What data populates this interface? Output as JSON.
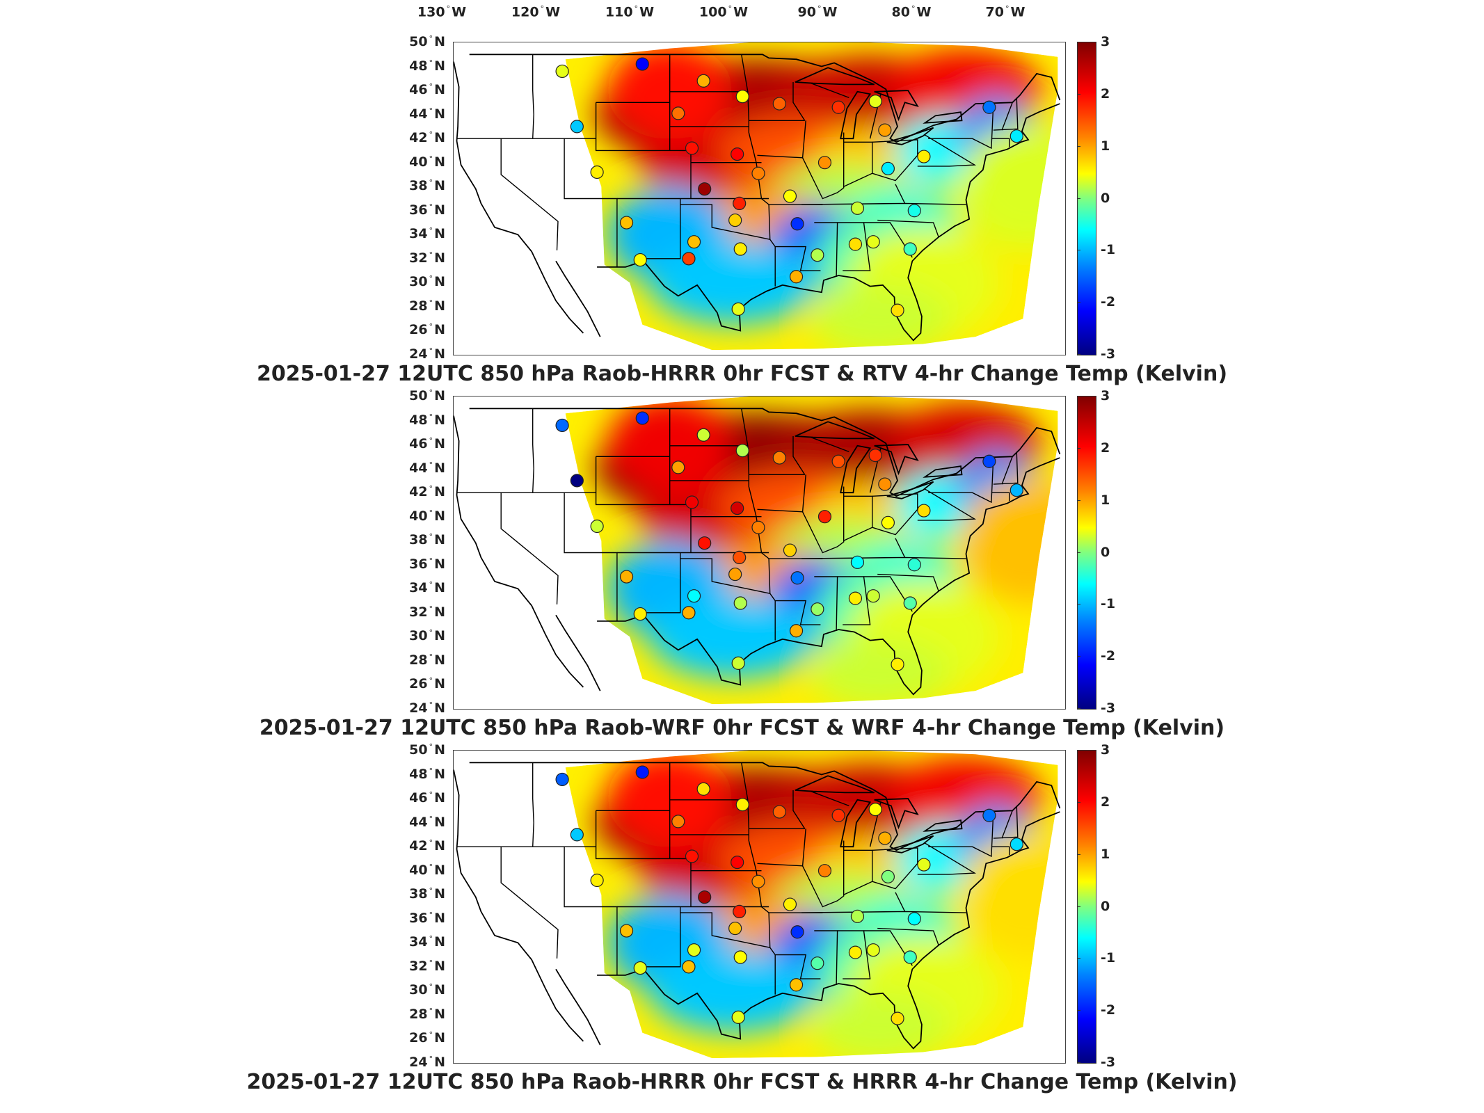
{
  "longitude_labels": [
    {
      "value": "130",
      "hemi": "W"
    },
    {
      "value": "120",
      "hemi": "W"
    },
    {
      "value": "110",
      "hemi": "W"
    },
    {
      "value": "100",
      "hemi": "W"
    },
    {
      "value": "90",
      "hemi": "W"
    },
    {
      "value": "80",
      "hemi": "W"
    },
    {
      "value": "70",
      "hemi": "W"
    }
  ],
  "latitude_labels": [
    {
      "value": "50",
      "hemi": "N"
    },
    {
      "value": "48",
      "hemi": "N"
    },
    {
      "value": "46",
      "hemi": "N"
    },
    {
      "value": "44",
      "hemi": "N"
    },
    {
      "value": "42",
      "hemi": "N"
    },
    {
      "value": "40",
      "hemi": "N"
    },
    {
      "value": "38",
      "hemi": "N"
    },
    {
      "value": "36",
      "hemi": "N"
    },
    {
      "value": "34",
      "hemi": "N"
    },
    {
      "value": "32",
      "hemi": "N"
    },
    {
      "value": "30",
      "hemi": "N"
    },
    {
      "value": "28",
      "hemi": "N"
    },
    {
      "value": "26",
      "hemi": "N"
    },
    {
      "value": "24",
      "hemi": "N"
    }
  ],
  "colorbar": {
    "ticks": [
      "3",
      "2",
      "1",
      "0",
      "-1",
      "-2",
      "-3"
    ],
    "range": [
      -3,
      3
    ],
    "colors": [
      "#800000",
      "#ff0000",
      "#ff8000",
      "#ffff00",
      "#80ff80",
      "#00ffff",
      "#0080ff",
      "#0000ff",
      "#000080"
    ]
  },
  "panels": [
    {
      "title": "2025-01-27 12UTC 850 hPa Raob-HRRR 0hr FCST & RTV 4-hr Change Temp (Kelvin)",
      "stations": [
        {
          "lon": -114.2,
          "lat": 47.6,
          "value": 0.4
        },
        {
          "lon": -106.6,
          "lat": 48.2,
          "value": -2.4
        },
        {
          "lon": -100.8,
          "lat": 46.8,
          "value": 1.0
        },
        {
          "lon": -97.1,
          "lat": 45.5,
          "value": 0.5
        },
        {
          "lon": -103.2,
          "lat": 44.1,
          "value": 1.4
        },
        {
          "lon": -112.8,
          "lat": 43.0,
          "value": -0.9
        },
        {
          "lon": -93.6,
          "lat": 44.9,
          "value": 1.5
        },
        {
          "lon": -88.0,
          "lat": 44.6,
          "value": 1.8
        },
        {
          "lon": -84.5,
          "lat": 45.1,
          "value": 0.4
        },
        {
          "lon": -101.9,
          "lat": 41.2,
          "value": 2.0
        },
        {
          "lon": -97.6,
          "lat": 40.7,
          "value": 2.1
        },
        {
          "lon": -89.3,
          "lat": 40.0,
          "value": 1.2
        },
        {
          "lon": -83.6,
          "lat": 42.7,
          "value": 1.1
        },
        {
          "lon": -83.3,
          "lat": 39.5,
          "value": -0.7
        },
        {
          "lon": -79.9,
          "lat": 40.5,
          "value": 0.6
        },
        {
          "lon": -71.1,
          "lat": 42.2,
          "value": -0.7
        },
        {
          "lon": -73.7,
          "lat": 44.6,
          "value": -1.4
        },
        {
          "lon": -110.9,
          "lat": 39.2,
          "value": 0.6
        },
        {
          "lon": -100.7,
          "lat": 37.8,
          "value": 2.8
        },
        {
          "lon": -95.6,
          "lat": 39.1,
          "value": 1.3
        },
        {
          "lon": -92.6,
          "lat": 37.2,
          "value": 0.5
        },
        {
          "lon": -97.4,
          "lat": 36.6,
          "value": 1.9
        },
        {
          "lon": -97.8,
          "lat": 35.2,
          "value": 0.8
        },
        {
          "lon": -91.9,
          "lat": 34.9,
          "value": -2.0
        },
        {
          "lon": -86.2,
          "lat": 36.2,
          "value": 0.3
        },
        {
          "lon": -80.8,
          "lat": 36.0,
          "value": -0.5
        },
        {
          "lon": -108.1,
          "lat": 35.0,
          "value": 0.9
        },
        {
          "lon": -101.7,
          "lat": 33.4,
          "value": 0.9
        },
        {
          "lon": -97.3,
          "lat": 32.8,
          "value": 0.6
        },
        {
          "lon": -102.2,
          "lat": 32.0,
          "value": 1.7
        },
        {
          "lon": -106.8,
          "lat": 31.9,
          "value": 0.5
        },
        {
          "lon": -90.0,
          "lat": 32.3,
          "value": 0.2
        },
        {
          "lon": -86.4,
          "lat": 33.2,
          "value": 0.7
        },
        {
          "lon": -84.7,
          "lat": 33.4,
          "value": 0.4
        },
        {
          "lon": -81.2,
          "lat": 32.8,
          "value": -0.3
        },
        {
          "lon": -92.0,
          "lat": 30.5,
          "value": 1.0
        },
        {
          "lon": -97.5,
          "lat": 27.8,
          "value": 0.4
        },
        {
          "lon": -82.4,
          "lat": 27.7,
          "value": 0.7
        }
      ]
    },
    {
      "title": "2025-01-27 12UTC 850 hPa Raob-WRF 0hr FCST & WRF 4-hr Change Temp (Kelvin)",
      "stations": [
        {
          "lon": -114.2,
          "lat": 47.6,
          "value": -1.5
        },
        {
          "lon": -106.6,
          "lat": 48.2,
          "value": -2.0
        },
        {
          "lon": -100.8,
          "lat": 46.8,
          "value": 0.3
        },
        {
          "lon": -97.1,
          "lat": 45.5,
          "value": 0.2
        },
        {
          "lon": -103.2,
          "lat": 44.1,
          "value": 1.1
        },
        {
          "lon": -112.8,
          "lat": 43.0,
          "value": -3.0
        },
        {
          "lon": -93.6,
          "lat": 44.9,
          "value": 1.3
        },
        {
          "lon": -88.0,
          "lat": 44.6,
          "value": 1.6
        },
        {
          "lon": -84.5,
          "lat": 45.1,
          "value": 1.8
        },
        {
          "lon": -101.9,
          "lat": 41.2,
          "value": 2.2
        },
        {
          "lon": -97.6,
          "lat": 40.7,
          "value": 2.4
        },
        {
          "lon": -89.3,
          "lat": 40.0,
          "value": 1.9
        },
        {
          "lon": -83.6,
          "lat": 42.7,
          "value": 1.2
        },
        {
          "lon": -83.3,
          "lat": 39.5,
          "value": 0.5
        },
        {
          "lon": -79.9,
          "lat": 40.5,
          "value": 0.7
        },
        {
          "lon": -71.1,
          "lat": 42.2,
          "value": -1.0
        },
        {
          "lon": -73.7,
          "lat": 44.6,
          "value": -1.8
        },
        {
          "lon": -110.9,
          "lat": 39.2,
          "value": 0.3
        },
        {
          "lon": -100.7,
          "lat": 37.8,
          "value": 2.0
        },
        {
          "lon": -95.6,
          "lat": 39.1,
          "value": 1.3
        },
        {
          "lon": -92.6,
          "lat": 37.2,
          "value": 0.8
        },
        {
          "lon": -97.4,
          "lat": 36.6,
          "value": 1.6
        },
        {
          "lon": -97.8,
          "lat": 35.2,
          "value": 1.1
        },
        {
          "lon": -91.9,
          "lat": 34.9,
          "value": -1.4
        },
        {
          "lon": -86.2,
          "lat": 36.2,
          "value": -0.6
        },
        {
          "lon": -80.8,
          "lat": 36.0,
          "value": -0.4
        },
        {
          "lon": -108.1,
          "lat": 35.0,
          "value": 1.0
        },
        {
          "lon": -101.7,
          "lat": 33.4,
          "value": -0.6
        },
        {
          "lon": -97.3,
          "lat": 32.8,
          "value": 0.2
        },
        {
          "lon": -102.2,
          "lat": 32.0,
          "value": 1.0
        },
        {
          "lon": -106.8,
          "lat": 31.9,
          "value": 0.6
        },
        {
          "lon": -90.0,
          "lat": 32.3,
          "value": 0.1
        },
        {
          "lon": -86.4,
          "lat": 33.2,
          "value": 0.6
        },
        {
          "lon": -84.7,
          "lat": 33.4,
          "value": 0.3
        },
        {
          "lon": -81.2,
          "lat": 32.8,
          "value": -0.2
        },
        {
          "lon": -92.0,
          "lat": 30.5,
          "value": 1.0
        },
        {
          "lon": -97.5,
          "lat": 27.8,
          "value": 0.3
        },
        {
          "lon": -82.4,
          "lat": 27.7,
          "value": 0.6
        }
      ]
    },
    {
      "title": "2025-01-27 12UTC 850 hPa Raob-HRRR 0hr FCST & HRRR 4-hr Change Temp (Kelvin)",
      "stations": [
        {
          "lon": -114.2,
          "lat": 47.6,
          "value": -1.6
        },
        {
          "lon": -106.6,
          "lat": 48.2,
          "value": -2.2
        },
        {
          "lon": -100.8,
          "lat": 46.8,
          "value": 0.7
        },
        {
          "lon": -97.1,
          "lat": 45.5,
          "value": 0.6
        },
        {
          "lon": -103.2,
          "lat": 44.1,
          "value": 1.3
        },
        {
          "lon": -112.8,
          "lat": 43.0,
          "value": -0.9
        },
        {
          "lon": -93.6,
          "lat": 44.9,
          "value": 1.5
        },
        {
          "lon": -88.0,
          "lat": 44.6,
          "value": 1.8
        },
        {
          "lon": -84.5,
          "lat": 45.1,
          "value": 0.5
        },
        {
          "lon": -101.9,
          "lat": 41.2,
          "value": 2.0
        },
        {
          "lon": -97.6,
          "lat": 40.7,
          "value": 2.1
        },
        {
          "lon": -89.3,
          "lat": 40.0,
          "value": 1.3
        },
        {
          "lon": -83.6,
          "lat": 42.7,
          "value": 1.0
        },
        {
          "lon": -83.3,
          "lat": 39.5,
          "value": 0.0
        },
        {
          "lon": -79.9,
          "lat": 40.5,
          "value": 0.4
        },
        {
          "lon": -71.1,
          "lat": 42.2,
          "value": -0.8
        },
        {
          "lon": -73.7,
          "lat": 44.6,
          "value": -1.4
        },
        {
          "lon": -110.9,
          "lat": 39.2,
          "value": 0.6
        },
        {
          "lon": -100.7,
          "lat": 37.8,
          "value": 2.7
        },
        {
          "lon": -95.6,
          "lat": 39.1,
          "value": 1.2
        },
        {
          "lon": -92.6,
          "lat": 37.2,
          "value": 0.6
        },
        {
          "lon": -97.4,
          "lat": 36.6,
          "value": 1.9
        },
        {
          "lon": -97.8,
          "lat": 35.2,
          "value": 0.9
        },
        {
          "lon": -91.9,
          "lat": 34.9,
          "value": -2.0
        },
        {
          "lon": -86.2,
          "lat": 36.2,
          "value": 0.2
        },
        {
          "lon": -80.8,
          "lat": 36.0,
          "value": -0.6
        },
        {
          "lon": -108.1,
          "lat": 35.0,
          "value": 0.9
        },
        {
          "lon": -101.7,
          "lat": 33.4,
          "value": 0.4
        },
        {
          "lon": -97.3,
          "lat": 32.8,
          "value": 0.5
        },
        {
          "lon": -102.2,
          "lat": 32.0,
          "value": 0.9
        },
        {
          "lon": -106.8,
          "lat": 31.9,
          "value": 0.4
        },
        {
          "lon": -90.0,
          "lat": 32.3,
          "value": -0.2
        },
        {
          "lon": -86.4,
          "lat": 33.2,
          "value": 0.6
        },
        {
          "lon": -84.7,
          "lat": 33.4,
          "value": 0.4
        },
        {
          "lon": -81.2,
          "lat": 32.8,
          "value": -0.3
        },
        {
          "lon": -92.0,
          "lat": 30.5,
          "value": 0.9
        },
        {
          "lon": -97.5,
          "lat": 27.8,
          "value": 0.4
        },
        {
          "lon": -82.4,
          "lat": 27.7,
          "value": 0.7
        }
      ]
    }
  ]
}
